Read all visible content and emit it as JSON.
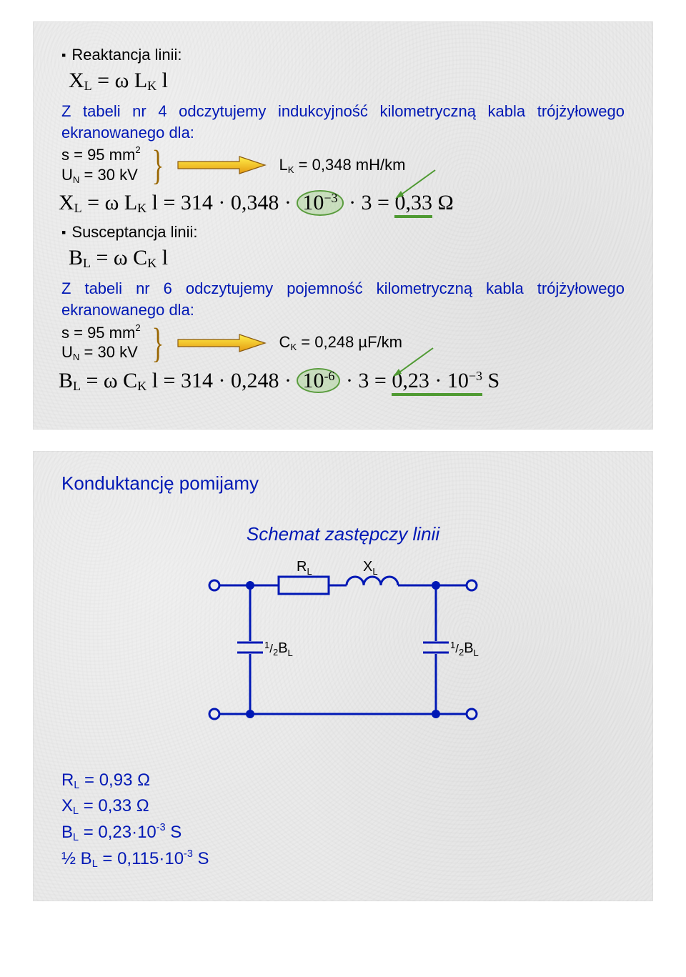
{
  "slide1": {
    "h_reaktancja": "Reaktancja linii:",
    "eq_xl_def": "X<span class='sub'>L</span> = ω L<span class='sub'>K</span> l",
    "txt_tabela4": "Z tabeli nr 4 odczytujemy indukcyjność kilometryczną kabla trójżyłowego ekranowanego dla:",
    "param_s": "s = 95 mm",
    "param_s_exp": "2",
    "param_un": "U",
    "param_un_sub": "N",
    "param_un_rest": " = 30 kV",
    "lk_label": "L",
    "lk_sub": "K",
    "lk_value": " = 0,348 mH/km",
    "eq_xl_pre": "X<span class='sub'>L</span> = ω L<span class='sub'>K</span> l = 314 · 0,348 · ",
    "eq_xl_oval": "10<span class='sup'>−3</span>",
    "eq_xl_mid": " · 3 = ",
    "eq_xl_res": "0,33",
    "eq_xl_unit": " Ω",
    "h_susceptancja": "Susceptancja linii:",
    "eq_bl_def": "B<span class='sub'>L</span> = ω C<span class='sub'>K</span> l",
    "txt_tabela6": "Z tabeli nr 6 odczytujemy pojemność kilometryczną kabla trójżyłowego ekranowanego dla:",
    "ck_label": "C",
    "ck_sub": "K",
    "ck_value": " = 0,248 µF/km",
    "eq_bl_pre": "B<span class='sub'>L</span> = ω C<span class='sub'>K</span> l = 314 · 0,248 · ",
    "eq_bl_oval": "10<span class='sup'>-6</span>",
    "eq_bl_mid": " · 3 = ",
    "eq_bl_res": "0,23 · 10<span class='sup'>−3</span>",
    "eq_bl_unit": " S"
  },
  "slide2": {
    "h_konduktancja": "Konduktancję pomijamy",
    "h_schemat": "Schemat zastępczy linii",
    "labels": {
      "RL": "R",
      "RL_sub": "L",
      "XL": "X",
      "XL_sub": "L",
      "halfB_pre": "1",
      "halfB_slash": "/",
      "halfB_den": "2",
      "halfB_B": "B",
      "halfB_Bsub": "L"
    },
    "results": {
      "rl": "R",
      "rl_sub": "L",
      "rl_val": " = 0,93 Ω",
      "xl": "X",
      "xl_sub": "L",
      "xl_val": " = 0,33 Ω",
      "bl": "B",
      "bl_sub": "L",
      "bl_val_pre": " = 0,23·10",
      "bl_exp": "-3",
      "bl_unit": " S",
      "hbl_pre": "½ B",
      "hbl_sub": "L",
      "hbl_val_pre": " = 0,115·10",
      "hbl_exp": "-3",
      "hbl_unit": " S"
    },
    "diagram": {
      "stroke": "#0018b5",
      "node_fill": "#0018b5",
      "open_fill": "#eaeaea",
      "stroke_width": 3
    }
  },
  "colors": {
    "black": "#000000",
    "blue": "#0018b5",
    "green_stroke": "#4f9a32",
    "arrow_fill1": "#ffef4a",
    "arrow_fill2": "#e59a10",
    "arrow_stroke": "#8a5a10",
    "brace": "#996600",
    "slide_bg": "#eaeaea"
  }
}
